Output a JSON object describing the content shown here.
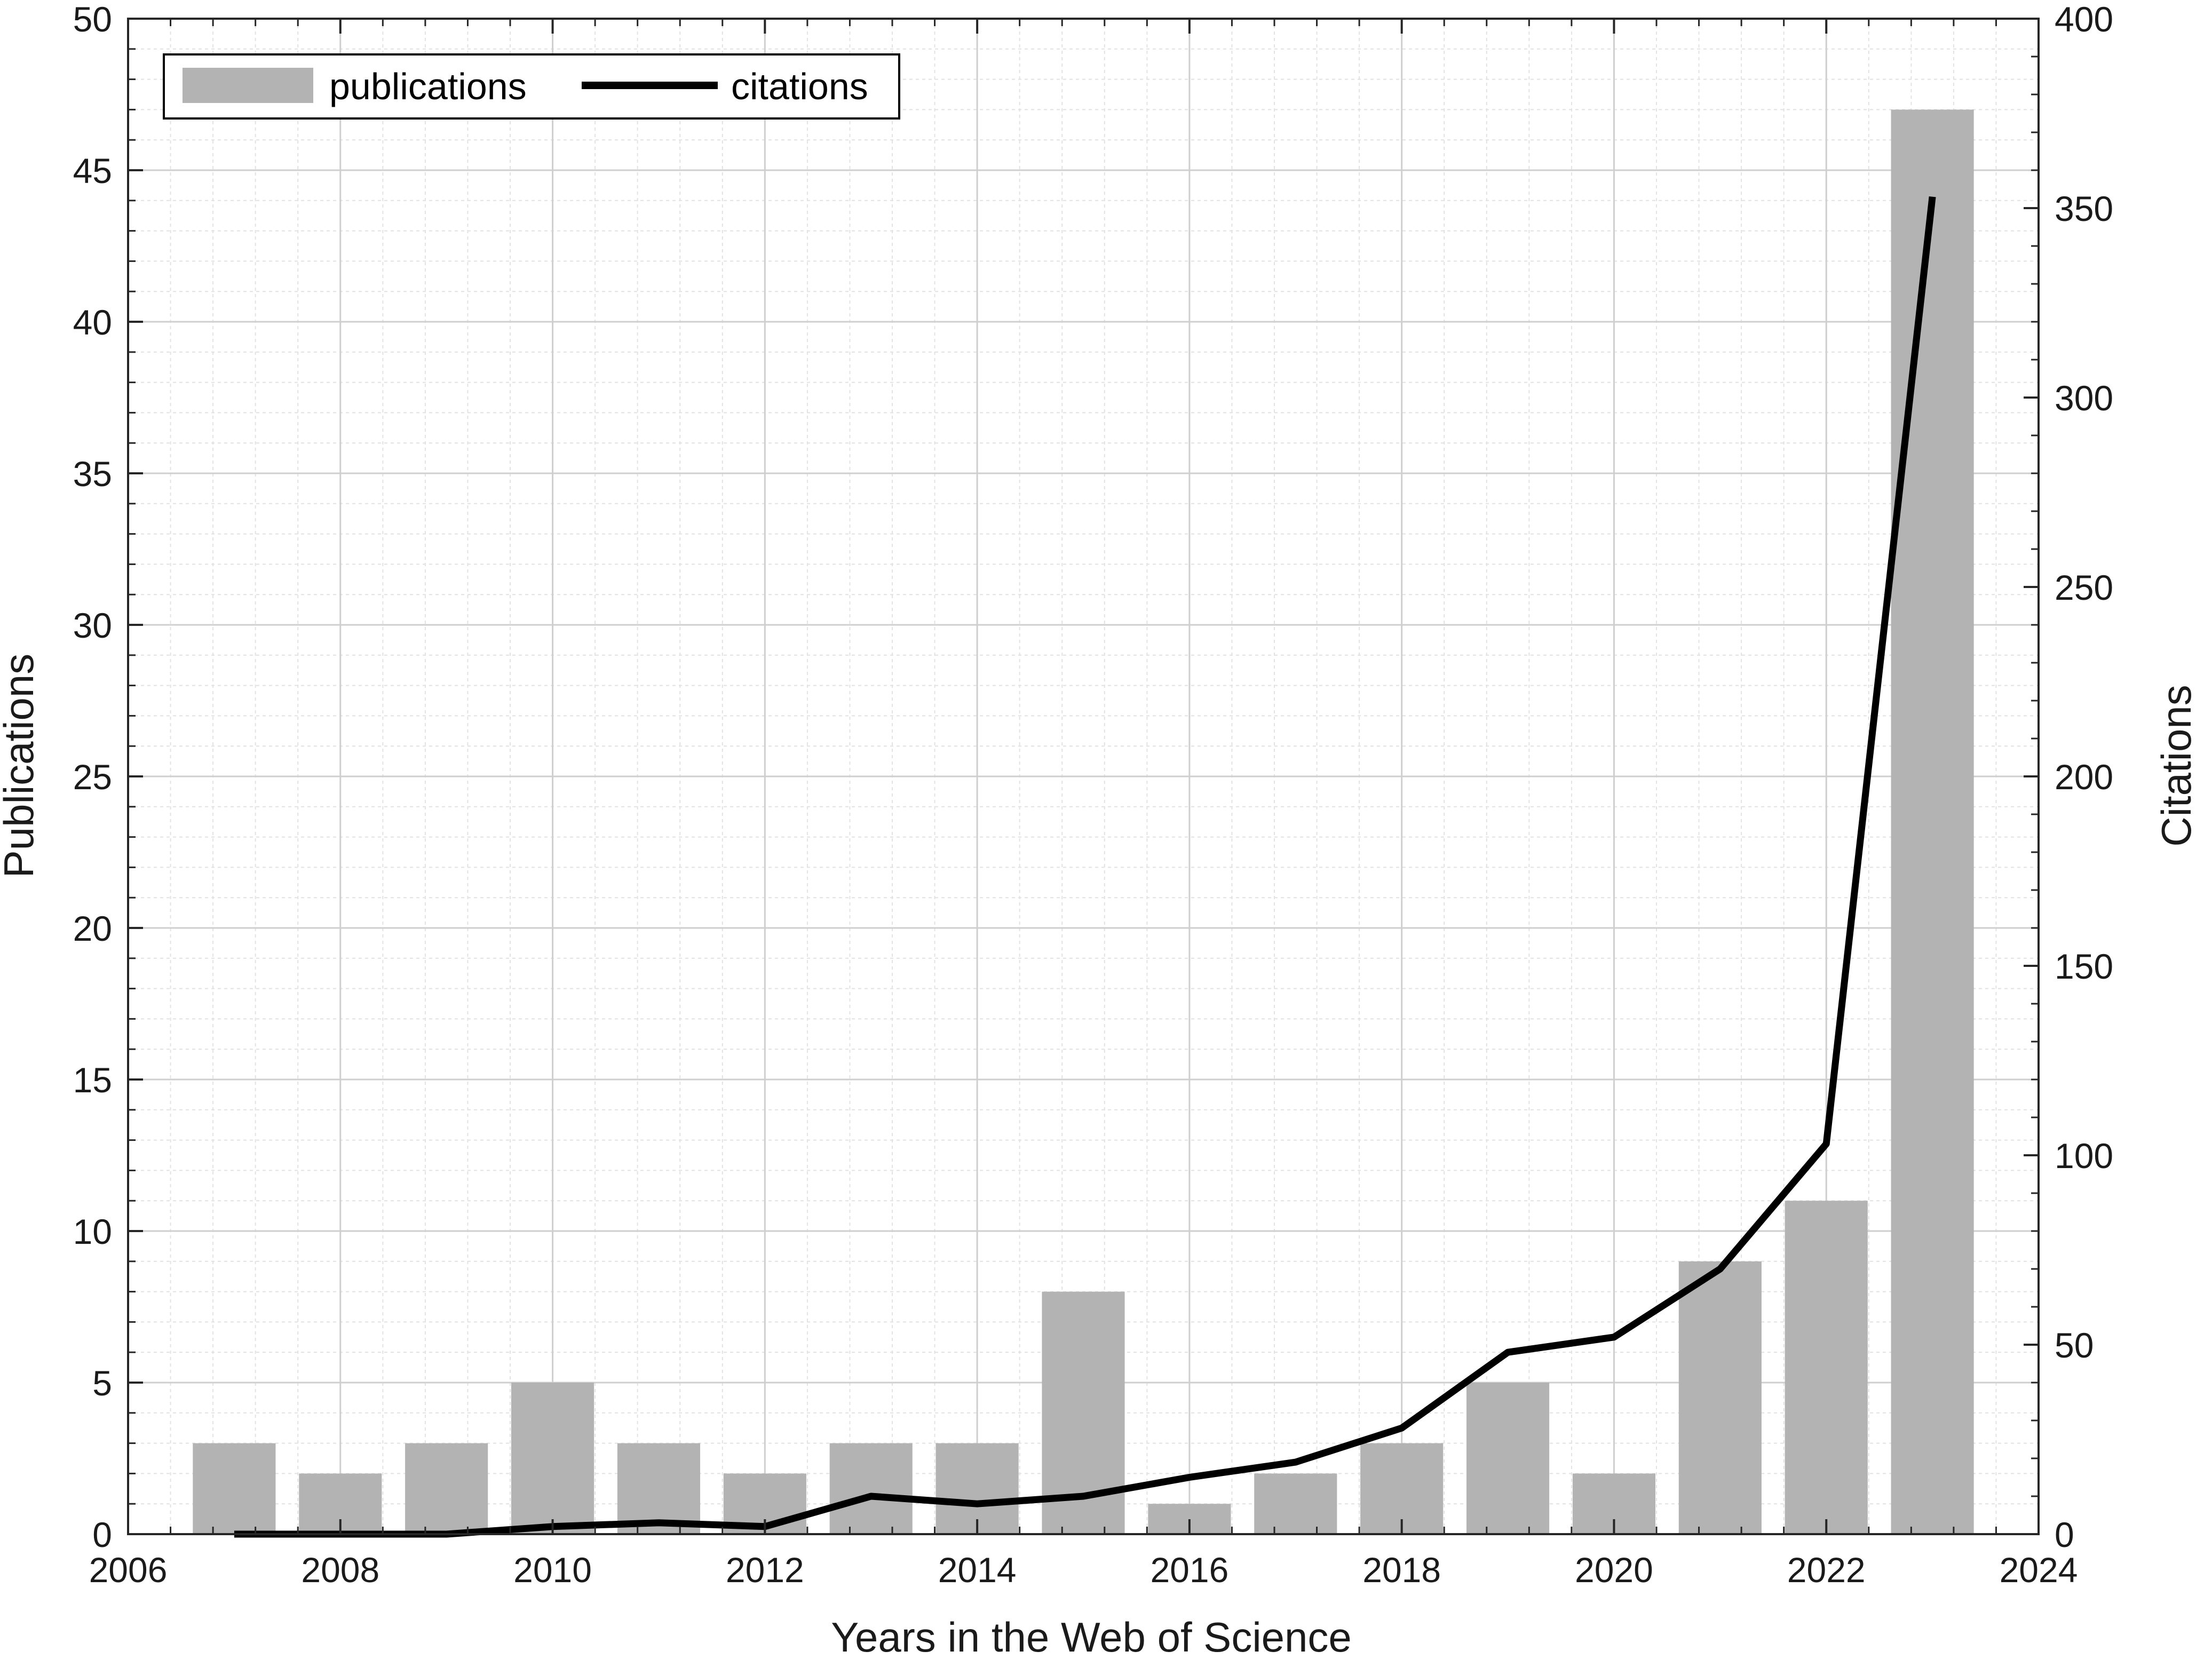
{
  "chart_data": {
    "type": "bar",
    "categories": [
      "2007",
      "2008",
      "2009",
      "2010",
      "2011",
      "2012",
      "2013",
      "2014",
      "2015",
      "2016",
      "2017",
      "2018",
      "2019",
      "2020",
      "2021",
      "2022",
      "2023"
    ],
    "x": [
      2007,
      2008,
      2009,
      2010,
      2011,
      2012,
      2013,
      2014,
      2015,
      2016,
      2017,
      2018,
      2019,
      2020,
      2021,
      2022,
      2023
    ],
    "series": [
      {
        "name": "publications",
        "type": "bar",
        "axis": "left",
        "color": "#b3b3b3",
        "values": [
          3,
          2,
          3,
          5,
          3,
          2,
          3,
          3,
          8,
          1,
          2,
          3,
          5,
          2,
          9,
          11,
          47
        ]
      },
      {
        "name": "citations",
        "type": "line",
        "axis": "right",
        "color": "#000000",
        "values": [
          0,
          0,
          0,
          2,
          3,
          2,
          10,
          8,
          10,
          15,
          19,
          28,
          48,
          52,
          70,
          103,
          353
        ]
      }
    ],
    "title": "",
    "xlabel": "Years in the Web of Science",
    "ylabel": "Publications",
    "y2label": "Citations",
    "xlim": [
      2006,
      2024
    ],
    "ylim": [
      0,
      50
    ],
    "y2lim": [
      0,
      400
    ],
    "xticks": [
      "2006",
      "2008",
      "2010",
      "2012",
      "2014",
      "2016",
      "2018",
      "2020",
      "2022",
      "2024"
    ],
    "yticks": [
      "0",
      "5",
      "10",
      "15",
      "20",
      "25",
      "30",
      "35",
      "40",
      "45",
      "50"
    ],
    "y2ticks": [
      "0",
      "50",
      "100",
      "150",
      "200",
      "250",
      "300",
      "350",
      "400"
    ],
    "grid": true,
    "minor_grid": true,
    "legend_position": "top-left",
    "legend": [
      "publications",
      "citations"
    ]
  }
}
